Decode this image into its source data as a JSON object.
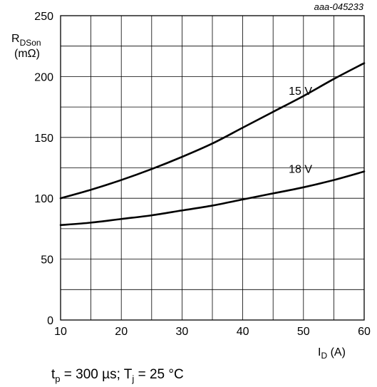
{
  "figure_ref": "aaa-045233",
  "conditions": {
    "t_sym": "t",
    "t_sub": "p",
    "t_rest": " = 300 µs; T",
    "tj_sub": "j",
    "tj_rest": " = 25 °C"
  },
  "chart_data": {
    "type": "line",
    "title": "",
    "xlabel": {
      "main": "I",
      "sub": "D",
      "unit": " (A)"
    },
    "ylabel": {
      "main": "R",
      "sub": "DSon",
      "unit": "(mΩ)"
    },
    "xlim": [
      10,
      60
    ],
    "ylim": [
      0,
      250
    ],
    "x_ticks": [
      10,
      20,
      30,
      40,
      50,
      60
    ],
    "y_ticks": [
      0,
      50,
      100,
      150,
      200,
      250
    ],
    "x_minor_step": 5,
    "y_minor_step": 25,
    "grid": true,
    "legend": "none",
    "line_color": "#000000",
    "series": [
      {
        "name": "15 V",
        "x": [
          10,
          15,
          20,
          25,
          30,
          35,
          40,
          45,
          50,
          55,
          60
        ],
        "y": [
          100,
          107,
          115,
          124,
          134,
          145,
          158,
          171,
          184,
          198,
          211
        ]
      },
      {
        "name": "18 V",
        "x": [
          10,
          15,
          20,
          25,
          30,
          35,
          40,
          45,
          50,
          55,
          60
        ],
        "y": [
          78,
          80,
          83,
          86,
          90,
          94,
          99,
          104,
          109,
          115,
          122
        ]
      }
    ],
    "annotations": [
      {
        "text": "15 V",
        "series": "15 V",
        "x": 49.5,
        "y": 185
      },
      {
        "text": "18 V",
        "series": "18 V",
        "x": 49.5,
        "y": 121
      }
    ]
  }
}
